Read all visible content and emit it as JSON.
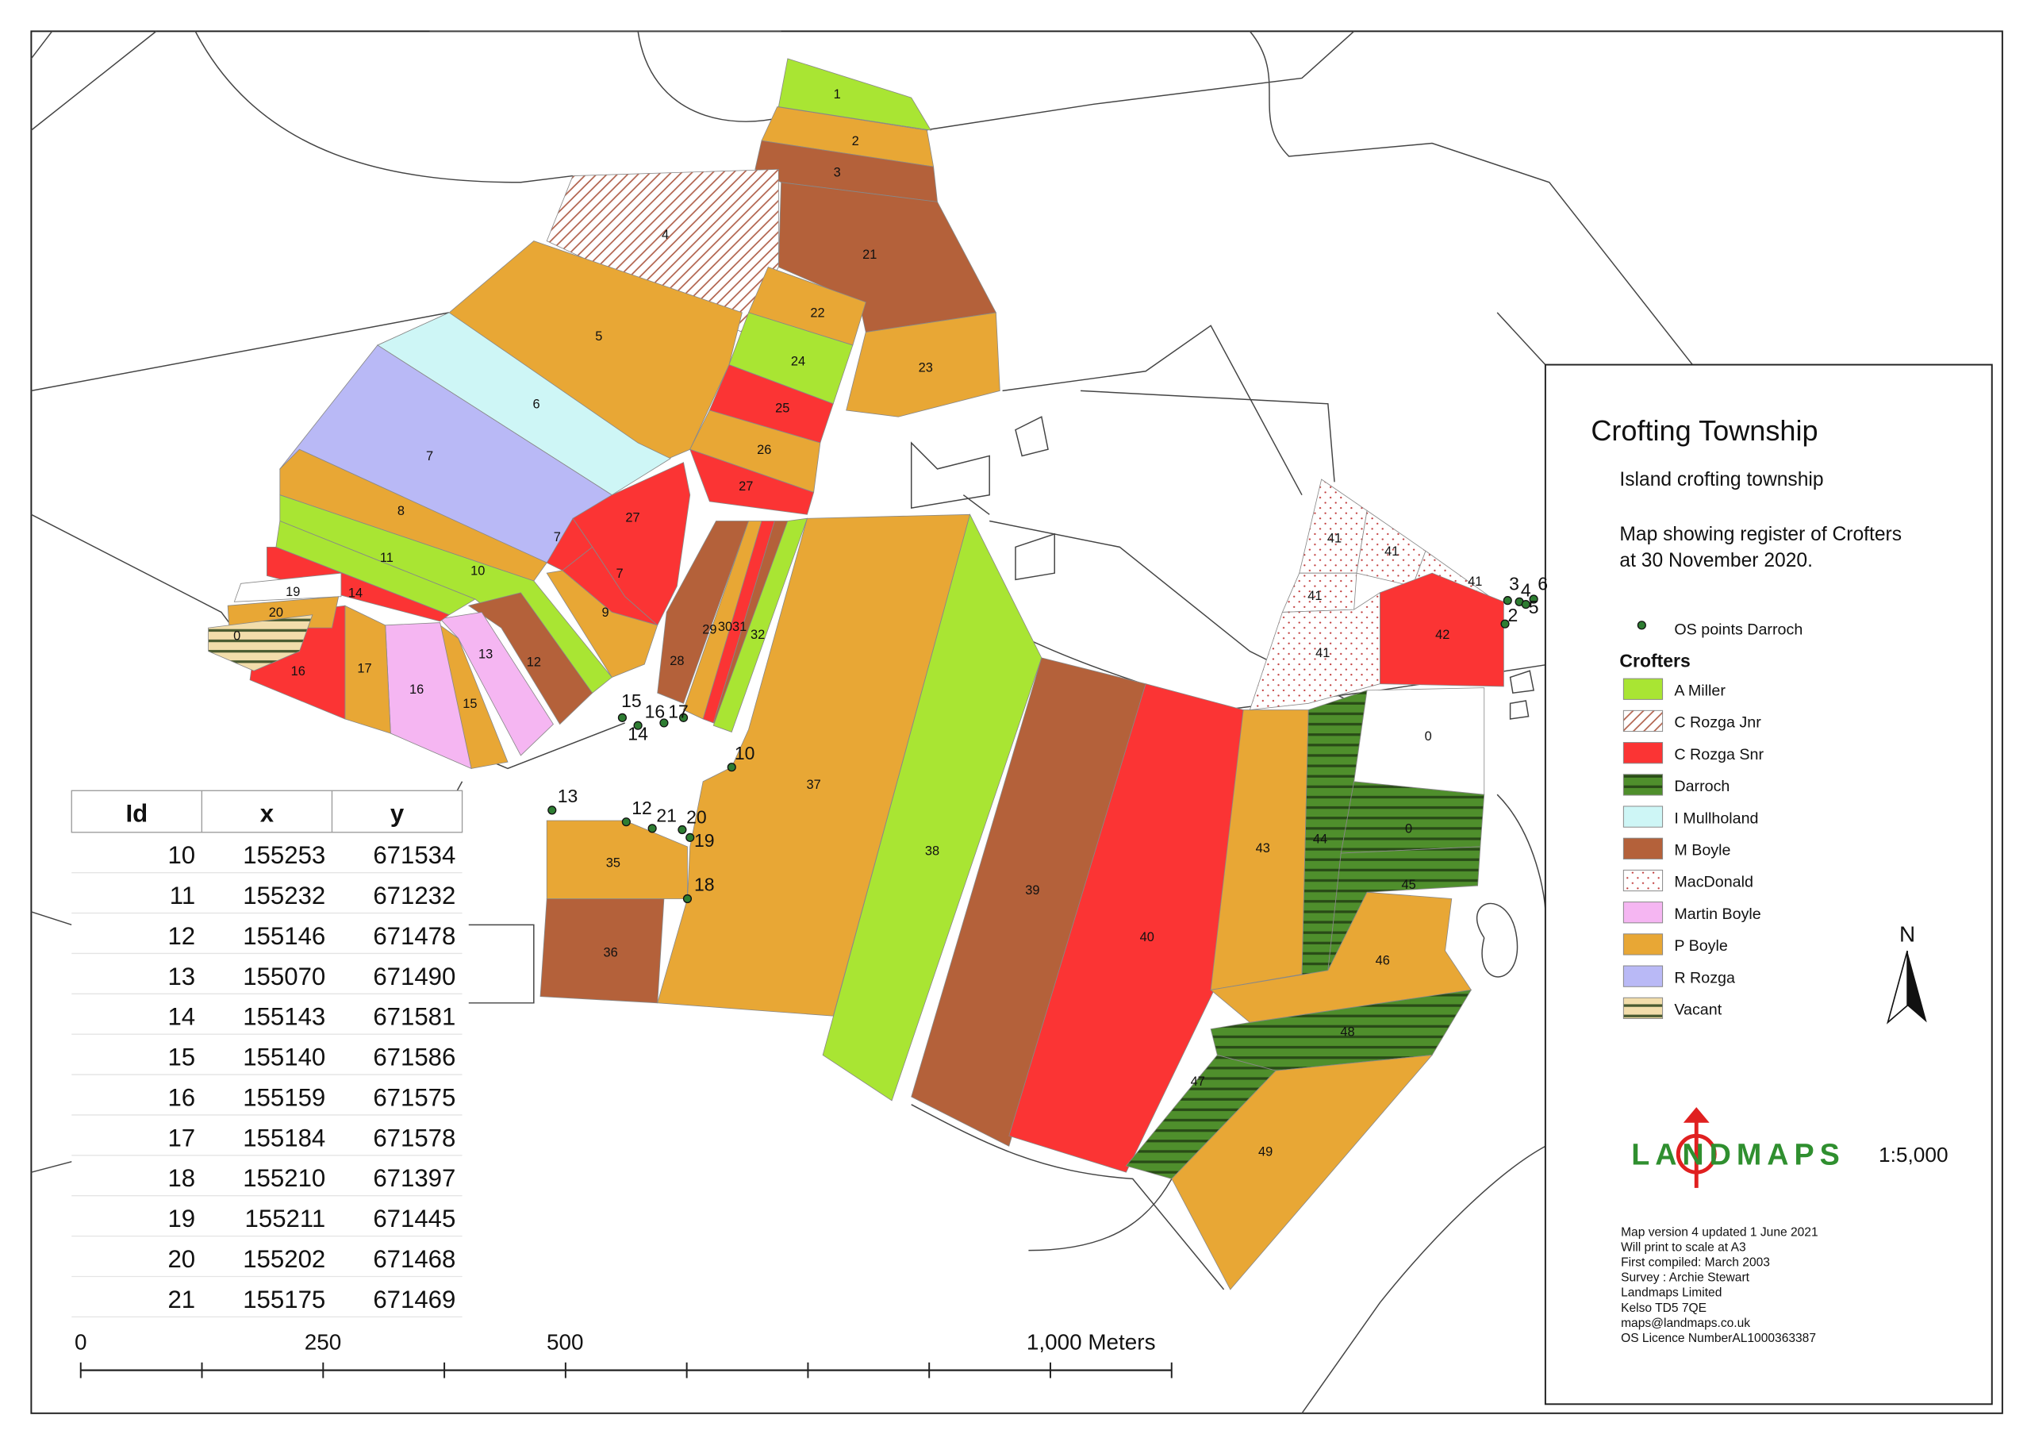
{
  "title": "Crofting Township",
  "subtitle": "Island crofting township",
  "description": [
    "Map showing register of Crofters",
    "at 30 November 2020."
  ],
  "os_points_legend": "OS points Darroch",
  "legend_title": "Crofters",
  "crofters": [
    {
      "name": "A Miller",
      "color": "#a9e533"
    },
    {
      "name": "C Rozga Jnr",
      "color": "#b0604a",
      "pattern": "hatch"
    },
    {
      "name": "C Rozga Snr",
      "color": "#fb3434"
    },
    {
      "name": "Darroch",
      "color": "#4f8f2c",
      "pattern": "stripes"
    },
    {
      "name": "I Mullholand",
      "color": "#cef6f6"
    },
    {
      "name": "M Boyle",
      "color": "#b4613a"
    },
    {
      "name": "MacDonald",
      "color": "#c03a3a",
      "pattern": "dots"
    },
    {
      "name": "Martin Boyle",
      "color": "#f5b6f2"
    },
    {
      "name": "P Boyle",
      "color": "#e8a735"
    },
    {
      "name": "R Rozga",
      "color": "#b9b9f6"
    },
    {
      "name": "Vacant",
      "color": "#f2ddab",
      "pattern": "stripes"
    }
  ],
  "parcels": [
    {
      "label": "1",
      "crofter": "A Miller"
    },
    {
      "label": "2",
      "crofter": "P Boyle"
    },
    {
      "label": "3",
      "crofter": "M Boyle"
    },
    {
      "label": "21",
      "crofter": "M Boyle"
    },
    {
      "label": "4",
      "crofter": "C Rozga Jnr"
    },
    {
      "label": "5",
      "crofter": "P Boyle"
    },
    {
      "label": "22",
      "crofter": "P Boyle"
    },
    {
      "label": "23",
      "crofter": "P Boyle"
    },
    {
      "label": "24",
      "crofter": "A Miller"
    },
    {
      "label": "25",
      "crofter": "C Rozga Snr"
    },
    {
      "label": "26",
      "crofter": "P Boyle"
    },
    {
      "label": "27",
      "crofter": "C Rozga Snr"
    },
    {
      "label": "6",
      "crofter": "I Mullholand"
    },
    {
      "label": "7",
      "crofter": "R Rozga"
    },
    {
      "label": "27",
      "crofter": "C Rozga Snr"
    },
    {
      "label": "7",
      "crofter": "C Rozga Snr"
    },
    {
      "label": "7",
      "crofter": "C Rozga Snr"
    },
    {
      "label": "8",
      "crofter": "P Boyle"
    },
    {
      "label": "10",
      "crofter": "A Miller"
    },
    {
      "label": "11",
      "crofter": "A Miller"
    },
    {
      "label": "9",
      "crofter": "P Boyle"
    },
    {
      "label": "12",
      "crofter": "M Boyle"
    },
    {
      "label": "13",
      "crofter": "Martin Boyle"
    },
    {
      "label": "14",
      "crofter": "C Rozga Snr"
    },
    {
      "label": "15",
      "crofter": "P Boyle"
    },
    {
      "label": "16",
      "crofter": "Martin Boyle"
    },
    {
      "label": "17",
      "crofter": "P Boyle"
    },
    {
      "label": "16",
      "crofter": "C Rozga Snr"
    },
    {
      "label": "19",
      "crofter": null
    },
    {
      "label": "20",
      "crofter": "P Boyle"
    },
    {
      "label": "0",
      "crofter": "Vacant"
    },
    {
      "label": "28",
      "crofter": "M Boyle"
    },
    {
      "label": "29",
      "crofter": "P Boyle"
    },
    {
      "label": "30",
      "crofter": "C Rozga Snr"
    },
    {
      "label": "31",
      "crofter": "M Boyle"
    },
    {
      "label": "32",
      "crofter": "A Miller"
    },
    {
      "label": "37",
      "crofter": "P Boyle"
    },
    {
      "label": "38",
      "crofter": "A Miller"
    },
    {
      "label": "39",
      "crofter": "M Boyle"
    },
    {
      "label": "40",
      "crofter": "C Rozga Snr"
    },
    {
      "label": "43",
      "crofter": "P Boyle"
    },
    {
      "label": "44",
      "crofter": "Darroch"
    },
    {
      "label": "0",
      "crofter": "Darroch"
    },
    {
      "label": "45",
      "crofter": "Darroch"
    },
    {
      "label": "0",
      "crofter": null
    },
    {
      "label": "46",
      "crofter": "P Boyle"
    },
    {
      "label": "48",
      "crofter": "Darroch"
    },
    {
      "label": "47",
      "crofter": "Darroch"
    },
    {
      "label": "49",
      "crofter": "P Boyle"
    },
    {
      "label": "36",
      "crofter": "M Boyle"
    },
    {
      "label": "35",
      "crofter": "P Boyle"
    },
    {
      "label": "41",
      "crofter": "MacDonald"
    },
    {
      "label": "41",
      "crofter": "MacDonald"
    },
    {
      "label": "41",
      "crofter": "MacDonald"
    },
    {
      "label": "41",
      "crofter": "MacDonald"
    },
    {
      "label": "41",
      "crofter": "MacDonald"
    },
    {
      "label": "42",
      "crofter": "C Rozga Snr"
    }
  ],
  "os_points": [
    "15",
    "16",
    "17",
    "14",
    "13",
    "12",
    "21",
    "20",
    "19",
    "18",
    "10",
    "3",
    "4",
    "6",
    "5",
    "2"
  ],
  "table": {
    "header": [
      "Id",
      "x",
      "y"
    ],
    "rows": [
      [
        10,
        155253,
        671534
      ],
      [
        11,
        155232,
        671232
      ],
      [
        12,
        155146,
        671478
      ],
      [
        13,
        155070,
        671490
      ],
      [
        14,
        155143,
        671581
      ],
      [
        15,
        155140,
        671586
      ],
      [
        16,
        155159,
        671575
      ],
      [
        17,
        155184,
        671578
      ],
      [
        18,
        155210,
        671397
      ],
      [
        19,
        155211,
        671445
      ],
      [
        20,
        155202,
        671468
      ],
      [
        21,
        155175,
        671469
      ]
    ]
  },
  "scale_bar": [
    "0",
    "250",
    "500",
    "1,000 Meters"
  ],
  "north": "N",
  "logo": "LANDMAPS",
  "scale": "1:5,000",
  "notes": [
    "Map version 4 updated 1 June 2021",
    "Will print to scale at A3",
    "First compiled: March 2003",
    "Survey : Archie Stewart",
    "Landmaps Limited",
    "Kelso TD5 7QE",
    "maps@landmaps.co.uk",
    "OS Licence NumberAL1000363387"
  ]
}
